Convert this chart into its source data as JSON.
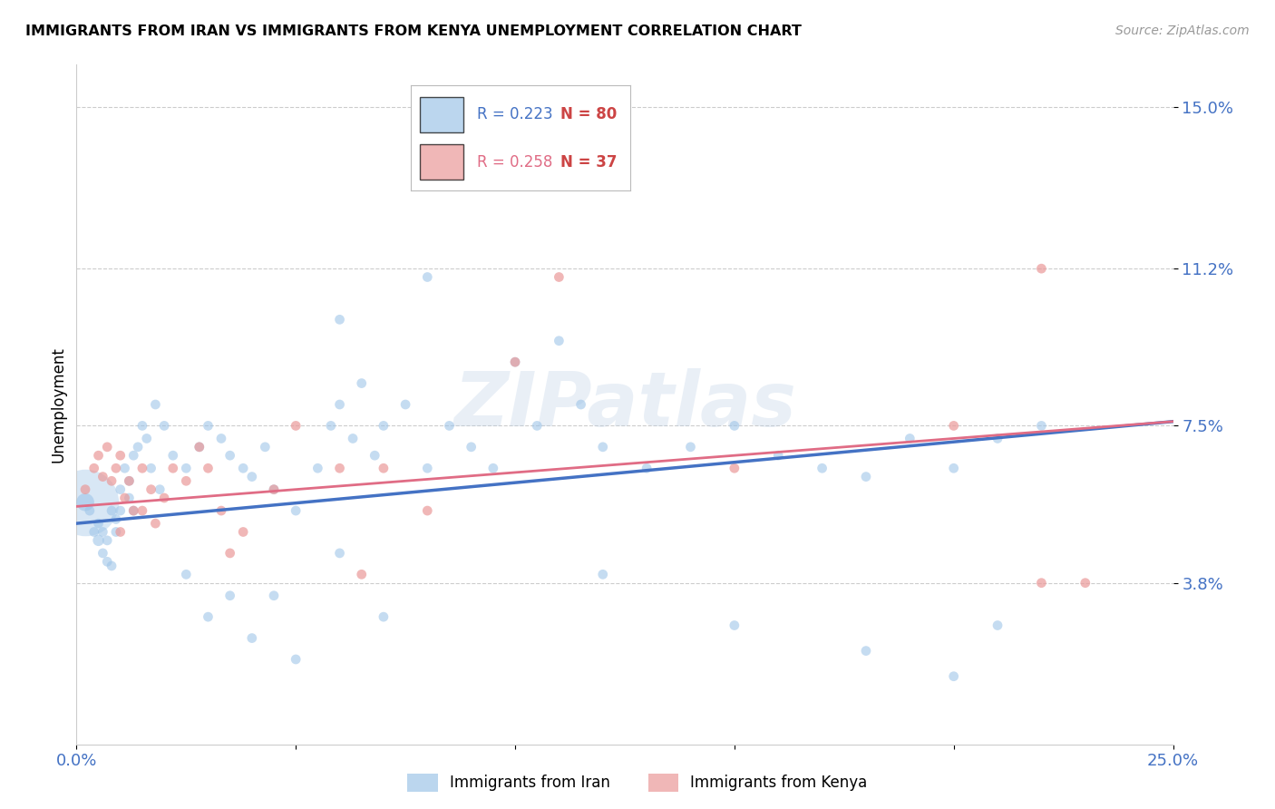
{
  "title": "IMMIGRANTS FROM IRAN VS IMMIGRANTS FROM KENYA UNEMPLOYMENT CORRELATION CHART",
  "source": "Source: ZipAtlas.com",
  "ylabel": "Unemployment",
  "xlim": [
    0.0,
    0.25
  ],
  "ylim": [
    0.0,
    0.16
  ],
  "yticks": [
    0.038,
    0.075,
    0.112,
    0.15
  ],
  "ytick_labels": [
    "3.8%",
    "7.5%",
    "11.2%",
    "15.0%"
  ],
  "xticks": [
    0.0,
    0.05,
    0.1,
    0.15,
    0.2,
    0.25
  ],
  "xtick_labels": [
    "0.0%",
    "",
    "",
    "",
    "",
    "25.0%"
  ],
  "color_iran": "#9fc5e8",
  "color_kenya": "#ea9999",
  "color_iran_line": "#4472c4",
  "color_kenya_line": "#e06c85",
  "color_blue": "#4472c4",
  "color_red": "#cc4444",
  "watermark": "ZIPatlas",
  "iran_x": [
    0.002,
    0.003,
    0.004,
    0.005,
    0.005,
    0.006,
    0.006,
    0.007,
    0.007,
    0.008,
    0.008,
    0.009,
    0.009,
    0.01,
    0.01,
    0.011,
    0.012,
    0.012,
    0.013,
    0.013,
    0.014,
    0.015,
    0.016,
    0.017,
    0.018,
    0.019,
    0.02,
    0.022,
    0.025,
    0.028,
    0.03,
    0.033,
    0.035,
    0.038,
    0.04,
    0.043,
    0.045,
    0.05,
    0.055,
    0.058,
    0.06,
    0.063,
    0.065,
    0.068,
    0.07,
    0.075,
    0.08,
    0.085,
    0.09,
    0.095,
    0.1,
    0.105,
    0.11,
    0.115,
    0.12,
    0.13,
    0.14,
    0.15,
    0.16,
    0.17,
    0.18,
    0.19,
    0.2,
    0.21,
    0.22,
    0.025,
    0.03,
    0.035,
    0.04,
    0.045,
    0.05,
    0.06,
    0.07,
    0.12,
    0.15,
    0.18,
    0.2,
    0.21,
    0.06,
    0.08
  ],
  "iran_y": [
    0.057,
    0.055,
    0.05,
    0.048,
    0.052,
    0.045,
    0.05,
    0.043,
    0.048,
    0.042,
    0.055,
    0.05,
    0.053,
    0.06,
    0.055,
    0.065,
    0.058,
    0.062,
    0.068,
    0.055,
    0.07,
    0.075,
    0.072,
    0.065,
    0.08,
    0.06,
    0.075,
    0.068,
    0.065,
    0.07,
    0.075,
    0.072,
    0.068,
    0.065,
    0.063,
    0.07,
    0.06,
    0.055,
    0.065,
    0.075,
    0.08,
    0.072,
    0.085,
    0.068,
    0.075,
    0.08,
    0.065,
    0.075,
    0.07,
    0.065,
    0.09,
    0.075,
    0.095,
    0.08,
    0.07,
    0.065,
    0.07,
    0.075,
    0.068,
    0.065,
    0.063,
    0.072,
    0.065,
    0.072,
    0.075,
    0.04,
    0.03,
    0.035,
    0.025,
    0.035,
    0.02,
    0.045,
    0.03,
    0.04,
    0.028,
    0.022,
    0.016,
    0.028,
    0.1,
    0.11
  ],
  "iran_sizes": [
    200,
    60,
    60,
    80,
    60,
    60,
    60,
    60,
    60,
    60,
    60,
    60,
    60,
    60,
    60,
    60,
    60,
    60,
    60,
    60,
    60,
    60,
    60,
    60,
    60,
    60,
    60,
    60,
    60,
    60,
    60,
    60,
    60,
    60,
    60,
    60,
    60,
    60,
    60,
    60,
    60,
    60,
    60,
    60,
    60,
    60,
    60,
    60,
    60,
    60,
    60,
    60,
    60,
    60,
    60,
    60,
    60,
    60,
    60,
    60,
    60,
    60,
    60,
    60,
    60,
    60,
    60,
    60,
    60,
    60,
    60,
    60,
    60,
    60,
    60,
    60,
    60,
    60,
    60,
    60
  ],
  "kenya_x": [
    0.002,
    0.004,
    0.005,
    0.006,
    0.007,
    0.008,
    0.009,
    0.01,
    0.011,
    0.012,
    0.013,
    0.015,
    0.017,
    0.018,
    0.02,
    0.022,
    0.025,
    0.028,
    0.03,
    0.033,
    0.038,
    0.045,
    0.05,
    0.06,
    0.07,
    0.08,
    0.1,
    0.11,
    0.15,
    0.2,
    0.22,
    0.23,
    0.01,
    0.015,
    0.035,
    0.065,
    0.22
  ],
  "kenya_y": [
    0.06,
    0.065,
    0.068,
    0.063,
    0.07,
    0.062,
    0.065,
    0.068,
    0.058,
    0.062,
    0.055,
    0.065,
    0.06,
    0.052,
    0.058,
    0.065,
    0.062,
    0.07,
    0.065,
    0.055,
    0.05,
    0.06,
    0.075,
    0.065,
    0.065,
    0.055,
    0.09,
    0.11,
    0.065,
    0.075,
    0.112,
    0.038,
    0.05,
    0.055,
    0.045,
    0.04,
    0.038
  ],
  "kenya_sizes": [
    60,
    60,
    60,
    60,
    60,
    60,
    60,
    60,
    60,
    60,
    60,
    60,
    60,
    60,
    60,
    60,
    60,
    60,
    60,
    60,
    60,
    60,
    60,
    60,
    60,
    60,
    60,
    60,
    60,
    60,
    60,
    60,
    60,
    60,
    60,
    60,
    60
  ],
  "iran_trendline_x": [
    0.0,
    0.25
  ],
  "iran_trendline_y": [
    0.052,
    0.076
  ],
  "kenya_trendline_x": [
    0.0,
    0.25
  ],
  "kenya_trendline_y": [
    0.056,
    0.076
  ]
}
